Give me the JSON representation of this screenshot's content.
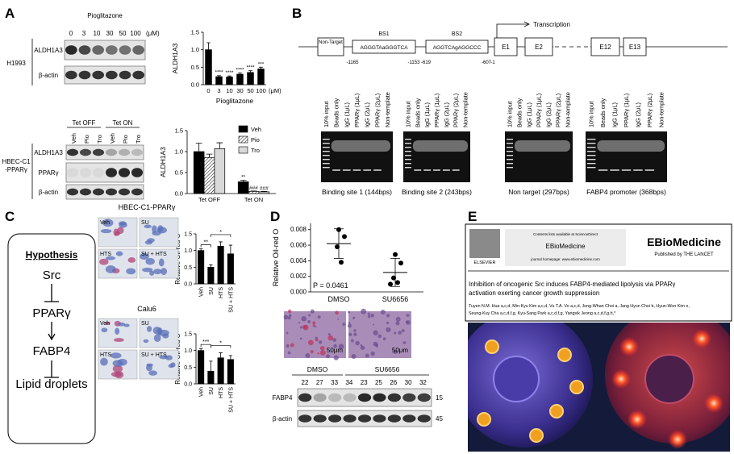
{
  "panel_labels": [
    "A",
    "B",
    "C",
    "D",
    "E"
  ],
  "panel_a": {
    "blot1": {
      "treatment": "Pioglitazone",
      "doses": [
        "0",
        "3",
        "10",
        "30",
        "50",
        "100"
      ],
      "unit": "(μM)",
      "rows": [
        "ALDH1A3",
        "β-actin"
      ],
      "cell_line": "H1993"
    },
    "blot2": {
      "groups": [
        "Tet OFF",
        "Tet ON"
      ],
      "lanes": [
        "Veh",
        "Pio",
        "Tro",
        "Veh",
        "Pio",
        "Tro"
      ],
      "rows": [
        "ALDH1A3",
        "PPARγ",
        "β-actin"
      ],
      "cell_line": "HBEC-C1-PPARγ"
    }
  },
  "panel_b": {
    "schematic": {
      "non_target": "Non-Target",
      "sites": [
        {
          "name": "BS1",
          "sequence": "AGGGTAaGGGTCA",
          "start": "-1165",
          "end": "-1153"
        },
        {
          "name": "BS2",
          "sequence": "AGGTCAgAGGCCC",
          "start": "-619",
          "end": "-607"
        }
      ],
      "tss": "-1",
      "transcription": "Transcription",
      "exons": [
        "E1",
        "E2",
        "E12",
        "E13"
      ]
    },
    "lanes": [
      "10% input",
      "Beads only",
      "IgG (1μL)",
      "PPARγ (1μL)",
      "IgG (2μL)",
      "PPARγ (2μL)",
      "Non-template"
    ],
    "gels": [
      "Binding site 1 (144bps)",
      "Binding site 2 (243bps)",
      "Non target (297bps)",
      "FABP4 promoter (368bps)"
    ]
  },
  "panel_c": {
    "hypothesis": {
      "title": "Hypothesis",
      "items": [
        "Src",
        "PPARγ",
        "FABP4",
        "Lipid droplets"
      ]
    },
    "cell_lines": [
      "HBEC-C1-PPARγ",
      "Calu6"
    ],
    "image_labels": [
      "Veh",
      "SU",
      "HTS",
      "SU + HTS"
    ]
  },
  "panel_d": {
    "scale_bars": [
      "50μm",
      "50μm"
    ],
    "blot": {
      "groups": [
        "DMSO",
        "SU6656"
      ],
      "lanes": [
        "22",
        "27",
        "33",
        "34",
        "23",
        "25",
        "26",
        "30",
        "32"
      ],
      "rows": [
        "FABP4",
        "β-actin"
      ],
      "markers": [
        "15",
        "45"
      ]
    }
  },
  "panel_e": {
    "publisher": "ELSEVIER",
    "contents": "Contents lists available at ScienceDirect",
    "journal": "EBioMedicine",
    "homepage": "journal homepage: www.ebiomedicine.com",
    "logo_title": "EBioMedicine",
    "logo_subtitle": "Published by THE LANCET",
    "title_lines": [
      "Inhibition of oncogenic Src induces FABP4-mediated lipolysis via PPARγ",
      "activation exerting cancer growth suppression"
    ],
    "author_lines": [
      "Tuyen N.M. Hua a,c,d, Min-Kyu Kim a,c,d, Vu T.A. Vo a,c,d, Jong-Whan Choi a, Jang Hyun Choi b, Hyun-Won Kim e,",
      "Seung-Kuy Cha a,c,d,f,g, Kyu-Sang Park a,c,d,f,g, Yangsik Jeong a,c,d,f,g,h,*"
    ]
  },
  "chart_data": [
    {
      "type": "bar",
      "y_label": "ALDH1A3",
      "x_label": "Pioglitazone",
      "x_unit": "(μM)",
      "categories": [
        "0",
        "3",
        "10",
        "30",
        "50",
        "100"
      ],
      "values": [
        1.0,
        0.23,
        0.22,
        0.3,
        0.35,
        0.45
      ],
      "errors": [
        0.2,
        0.03,
        0.03,
        0.04,
        0.05,
        0.05
      ],
      "significance": [
        null,
        "****",
        "****",
        "****",
        "****",
        "***"
      ],
      "color": "#000000",
      "ylim": [
        0,
        1.5
      ],
      "yticks": [
        {
          "value": 0,
          "label": "0.0"
        },
        {
          "value": 0.5,
          "label": "0.5"
        },
        {
          "value": 1,
          "label": "1.0"
        },
        {
          "value": 1.5,
          "label": "1.5"
        }
      ]
    },
    {
      "type": "grouped_bar",
      "y_label": "ALDH1A3",
      "categories": [
        "Tet OFF",
        "Tet ON"
      ],
      "legend": "upper right",
      "series": [
        {
          "name": "Veh",
          "color": "#000000",
          "values": [
            1.0,
            0.28
          ],
          "errors": [
            0.2,
            0.04
          ],
          "significance": [
            null,
            "**"
          ]
        },
        {
          "name": "Pio",
          "color": "#ffffff",
          "fill": "hatch",
          "values": [
            0.86,
            0.05
          ],
          "errors": [
            0.08,
            0.01
          ],
          "significance": [
            null,
            "###"
          ]
        },
        {
          "name": "Tro",
          "color": "#d9d9d9",
          "values": [
            1.07,
            0.04
          ],
          "errors": [
            0.14,
            0.01
          ],
          "significance": [
            null,
            "###"
          ]
        }
      ],
      "ylim": [
        0,
        1.5
      ],
      "yticks": [
        {
          "value": 0,
          "label": "0.0"
        },
        {
          "value": 0.5,
          "label": "0.5"
        },
        {
          "value": 1,
          "label": "1.0"
        },
        {
          "value": 1.5,
          "label": "1.5"
        }
      ]
    },
    {
      "type": "bar",
      "y_label": "Relative Oil-red O",
      "categories": [
        "Veh",
        "SU",
        "HTS",
        "SU + HTS"
      ],
      "values": [
        1.0,
        0.5,
        1.13,
        0.9
      ],
      "errors": [
        0.05,
        0.07,
        0.13,
        0.26
      ],
      "color": "#000000",
      "brackets": [
        {
          "from": 0,
          "to": 1,
          "label": "**"
        },
        {
          "from": 1,
          "to": 3,
          "label": "*"
        }
      ],
      "ylim": [
        0,
        1.5
      ],
      "yticks": [
        {
          "value": 0,
          "label": "0.0"
        },
        {
          "value": 0.5,
          "label": "0.5"
        },
        {
          "value": 1,
          "label": "1.0"
        },
        {
          "value": 1.5,
          "label": "1.5"
        }
      ]
    },
    {
      "type": "bar",
      "y_label": "Relative Oil-red O",
      "categories": [
        "Veh",
        "SU",
        "HTS",
        "SU + HTS"
      ],
      "values": [
        1.0,
        0.38,
        0.78,
        0.73
      ],
      "errors": [
        0.06,
        0.3,
        0.15,
        0.12
      ],
      "color": "#000000",
      "brackets": [
        {
          "from": 0,
          "to": 1,
          "label": "***"
        },
        {
          "from": 1,
          "to": 3,
          "label": "*"
        }
      ],
      "ylim": [
        0,
        1.5
      ],
      "yticks": [
        {
          "value": 0,
          "label": "0.0"
        },
        {
          "value": 0.5,
          "label": "0.5"
        },
        {
          "value": 1,
          "label": "1.0"
        },
        {
          "value": 1.5,
          "label": "1.5"
        }
      ]
    },
    {
      "type": "dot",
      "y_label": "Relative Oil-red O",
      "categories": [
        "DMSO",
        "SU6656"
      ],
      "values": [
        [
          0.008,
          0.0071,
          0.0058,
          0.0038
        ],
        [
          0.0048,
          0.0037,
          0.0018,
          0.0012,
          0.001
        ]
      ],
      "means": [
        0.0062,
        0.0025
      ],
      "errors": [
        0.0019,
        0.0018
      ],
      "annotation": "P = 0.0461",
      "color": "#000000",
      "ylim": [
        0,
        0.0088
      ],
      "yticks": [
        {
          "value": 0,
          "label": "0.000"
        },
        {
          "value": 0.002,
          "label": "0.002"
        },
        {
          "value": 0.004,
          "label": "0.004"
        },
        {
          "value": 0.006,
          "label": "0.006"
        },
        {
          "value": 0.008,
          "label": "0.008"
        }
      ]
    }
  ]
}
